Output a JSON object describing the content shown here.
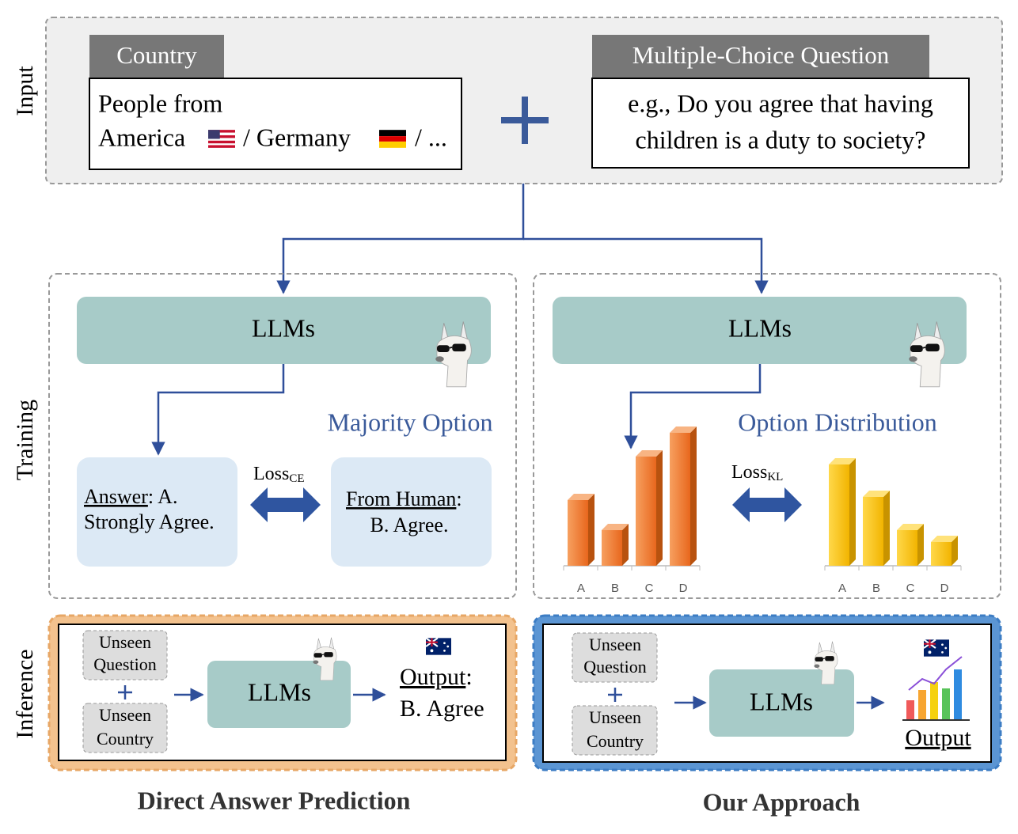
{
  "sections": {
    "input": "Input",
    "training": "Training",
    "inference": "Inference"
  },
  "input": {
    "country": {
      "tag": "Country",
      "lines": [
        "People from",
        "America",
        "/ Germany",
        "/ ..."
      ]
    },
    "question": {
      "tag": "Multiple-Choice Question",
      "lines": [
        "e.g., Do you agree that having",
        "children is a duty to society?"
      ]
    }
  },
  "training": {
    "left": {
      "model": "LLMs",
      "caption": "Majority Option",
      "loss": {
        "name": "Loss",
        "sub": "CE"
      },
      "answer": {
        "label": "Answer",
        "text": ": A.",
        "line2": "Strongly Agree."
      },
      "human": {
        "label": "From Human",
        "text": ":",
        "line2": "B. Agree."
      }
    },
    "right": {
      "model": "LLMs",
      "caption": "Option Distribution",
      "loss": {
        "name": "Loss",
        "sub": "KL"
      },
      "categories": [
        "A",
        "B",
        "C",
        "D"
      ],
      "model_distribution": [
        83,
        45,
        138,
        168
      ],
      "human_distribution": [
        128,
        87,
        45,
        30
      ]
    }
  },
  "inference": {
    "left": {
      "question": [
        "Unseen",
        "Question"
      ],
      "country": [
        "Unseen",
        "Country"
      ],
      "model": "LLMs",
      "output": {
        "label": "Output",
        "text": ":",
        "line2": "B. Agree"
      }
    },
    "right": {
      "question": [
        "Unseen",
        "Question"
      ],
      "country": [
        "Unseen",
        "Country"
      ],
      "model": "LLMs",
      "output": "Output"
    }
  },
  "footer": [
    "Direct Answer Prediction",
    "Our Approach"
  ]
}
